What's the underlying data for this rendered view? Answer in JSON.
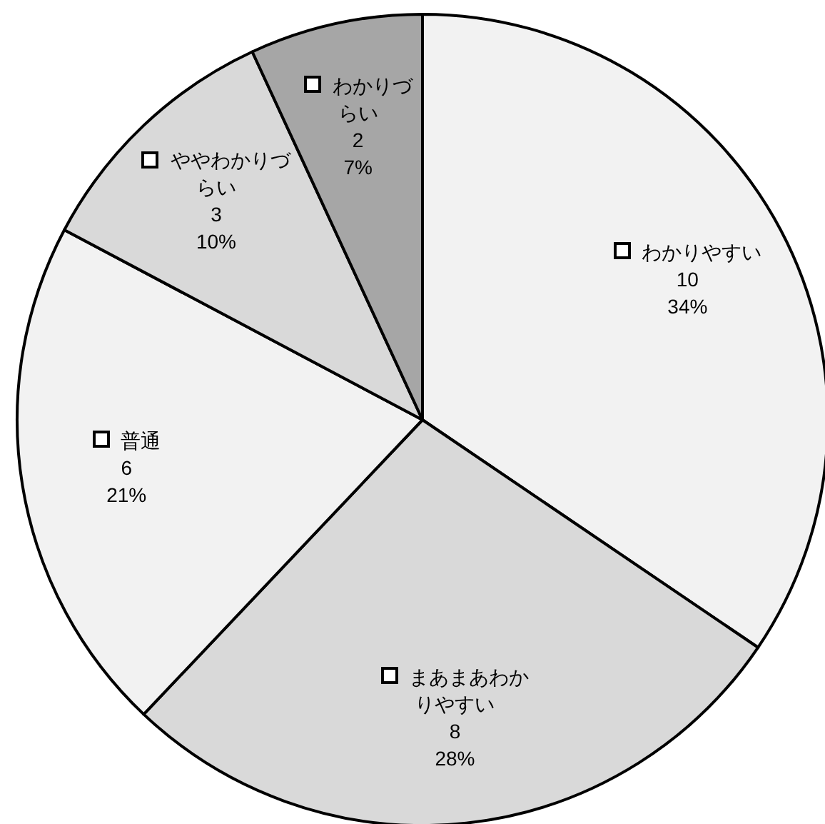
{
  "chart_data": {
    "type": "pie",
    "categories": [
      "わかりやすい",
      "まあまあわかりやすい",
      "普通",
      "ややわかりづらい",
      "わかりづらい"
    ],
    "values": [
      10,
      8,
      6,
      3,
      2
    ],
    "annotations": [
      {
        "text": "34%",
        "x": "わかりやすい"
      },
      {
        "text": "28%",
        "x": "まあまあわかりやすい"
      },
      {
        "text": "21%",
        "x": "普通"
      },
      {
        "text": "10%",
        "x": "ややわかりづらい"
      },
      {
        "text": "7%",
        "x": "わかりづらい"
      }
    ],
    "colors": [
      "#f2f2f2",
      "#d9d9d9",
      "#f2f2f2",
      "#d9d9d9",
      "#a6a6a6"
    ],
    "data_labels": true,
    "legend": true
  }
}
